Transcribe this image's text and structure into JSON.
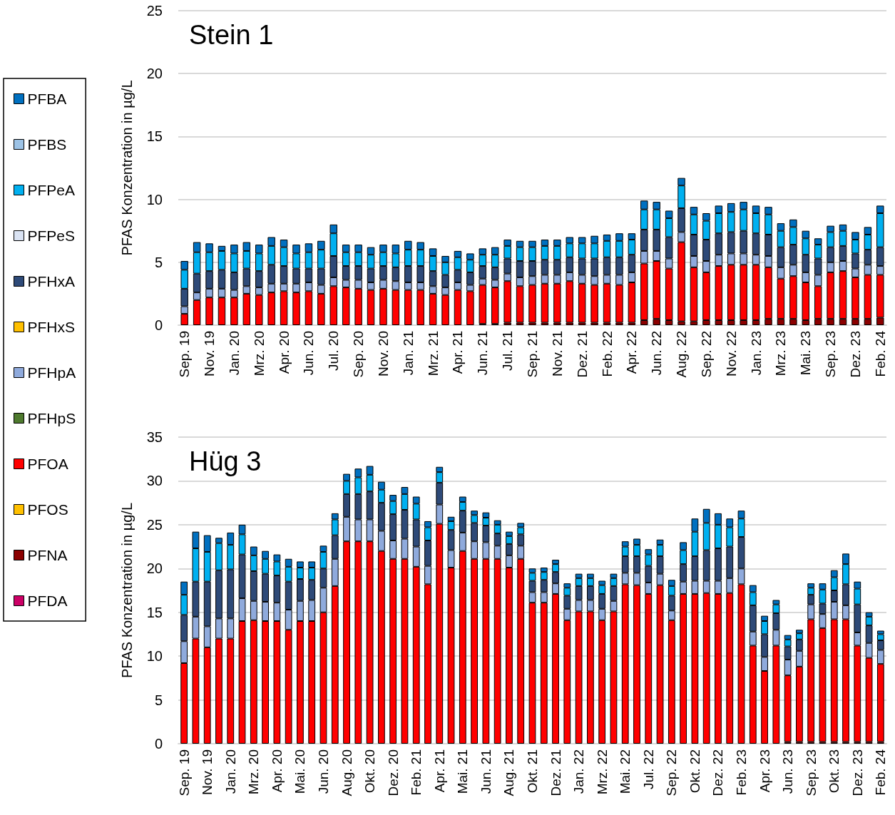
{
  "chart_data": [
    {
      "type": "bar",
      "title": "Stein 1",
      "ylabel": "PFAS Konzentration in µg/L",
      "stacked": true,
      "grid": "y",
      "legend": "left",
      "ylim": [
        0,
        25
      ],
      "yticks": [
        0,
        5,
        10,
        15,
        20,
        25
      ],
      "categories": [
        "Sep. 19",
        null,
        "Nov. 19",
        null,
        "Jan. 20",
        null,
        "Mrz. 20",
        null,
        "Apr. 20",
        null,
        "Jun. 20",
        null,
        "Jul. 20",
        null,
        "Sep. 20",
        null,
        "Nov. 20",
        null,
        "Jan. 21",
        null,
        "Mrz. 21",
        null,
        "Apr. 21",
        null,
        "Jun. 21",
        null,
        "Jul. 21",
        null,
        "Sep. 21",
        null,
        "Nov. 21",
        null,
        "Dez. 21",
        null,
        "Feb. 22",
        null,
        "Apr. 22",
        null,
        "Jun. 22",
        null,
        "Aug. 22",
        null,
        "Sep. 22",
        null,
        "Nov. 22",
        null,
        "Jan. 23",
        null,
        "Mrz. 23",
        null,
        "Mai. 23",
        null,
        "Sep. 23",
        null,
        "Dez. 23",
        null,
        "Feb. 24"
      ],
      "series": [
        {
          "name": "PFDA",
          "color": "#cc0066",
          "values": [
            0,
            0,
            0,
            0,
            0,
            0,
            0,
            0,
            0,
            0,
            0,
            0,
            0,
            0,
            0,
            0,
            0,
            0,
            0,
            0,
            0,
            0,
            0,
            0,
            0,
            0,
            0,
            0,
            0,
            0,
            0,
            0,
            0,
            0,
            0,
            0,
            0,
            0,
            0,
            0,
            0,
            0,
            0,
            0,
            0,
            0,
            0,
            0,
            0,
            0,
            0,
            0,
            0,
            0,
            0,
            0,
            0
          ]
        },
        {
          "name": "PFNA",
          "color": "#8b0000",
          "values": [
            0,
            0,
            0,
            0,
            0,
            0,
            0,
            0,
            0,
            0,
            0,
            0,
            0,
            0,
            0,
            0,
            0,
            0,
            0,
            0,
            0,
            0,
            0,
            0,
            0.1,
            0.1,
            0.2,
            0.2,
            0.2,
            0.2,
            0.2,
            0.2,
            0.2,
            0.2,
            0.2,
            0.2,
            0.2,
            0.4,
            0.5,
            0.4,
            0.3,
            0.3,
            0.4,
            0.4,
            0.4,
            0.4,
            0.4,
            0.5,
            0.5,
            0.5,
            0.4,
            0.5,
            0.5,
            0.5,
            0.5,
            0.5,
            0.6
          ]
        },
        {
          "name": "PFOS",
          "color": "#ffc000",
          "values": [
            0,
            0,
            0,
            0,
            0,
            0,
            0,
            0,
            0,
            0,
            0,
            0,
            0,
            0,
            0,
            0,
            0,
            0,
            0,
            0,
            0,
            0,
            0,
            0,
            0,
            0,
            0,
            0,
            0,
            0,
            0,
            0,
            0,
            0,
            0,
            0,
            0,
            0,
            0,
            0,
            0,
            0,
            0,
            0,
            0,
            0,
            0,
            0,
            0,
            0,
            0,
            0,
            0,
            0,
            0,
            0,
            0
          ]
        },
        {
          "name": "PFOA",
          "color": "#ff0000",
          "values": [
            0.9,
            2.0,
            2.2,
            2.2,
            2.2,
            2.5,
            2.4,
            2.6,
            2.7,
            2.6,
            2.7,
            2.5,
            3.1,
            3.0,
            2.9,
            2.8,
            2.9,
            2.8,
            2.8,
            2.8,
            2.5,
            2.4,
            2.8,
            2.7,
            3.1,
            2.9,
            3.3,
            2.9,
            3.0,
            3.1,
            3.1,
            3.3,
            3.1,
            3.0,
            3.1,
            3.0,
            3.2,
            4.5,
            4.6,
            4.1,
            6.3,
            4.3,
            3.8,
            4.3,
            4.4,
            4.4,
            4.4,
            4.1,
            3.2,
            3.4,
            3.0,
            2.6,
            3.7,
            3.8,
            3.3,
            3.5,
            3.4
          ]
        },
        {
          "name": "PFHpS",
          "color": "#4e7a2e",
          "values": [
            0,
            0,
            0,
            0,
            0,
            0,
            0,
            0,
            0,
            0,
            0,
            0,
            0,
            0,
            0,
            0,
            0,
            0,
            0,
            0,
            0,
            0,
            0,
            0,
            0,
            0,
            0,
            0,
            0,
            0,
            0,
            0,
            0,
            0,
            0,
            0,
            0,
            0,
            0,
            0,
            0,
            0,
            0,
            0,
            0,
            0,
            0,
            0,
            0,
            0,
            0,
            0,
            0,
            0,
            0,
            0,
            0
          ]
        },
        {
          "name": "PFHpA",
          "color": "#8faadc",
          "values": [
            0.6,
            0.6,
            0.7,
            0.7,
            0.6,
            0.6,
            0.6,
            0.7,
            0.6,
            0.7,
            0.7,
            0.7,
            0.7,
            0.6,
            0.7,
            0.6,
            0.7,
            0.7,
            0.6,
            0.6,
            0.6,
            0.6,
            0.6,
            0.5,
            0.5,
            0.6,
            0.6,
            0.7,
            0.7,
            0.7,
            0.7,
            0.7,
            0.7,
            0.7,
            0.7,
            0.8,
            0.8,
            1.0,
            0.8,
            0.8,
            0.8,
            0.9,
            0.9,
            0.9,
            0.9,
            0.9,
            0.8,
            0.9,
            0.9,
            0.9,
            0.8,
            0.9,
            0.8,
            0.8,
            0.7,
            0.8,
            0.7
          ]
        },
        {
          "name": "PFHxS",
          "color": "#ffc000",
          "values": [
            0,
            0,
            0,
            0,
            0,
            0,
            0,
            0,
            0,
            0,
            0,
            0,
            0,
            0,
            0,
            0,
            0,
            0,
            0,
            0,
            0,
            0,
            0,
            0,
            0,
            0,
            0,
            0,
            0,
            0,
            0,
            0,
            0,
            0,
            0,
            0,
            0,
            0,
            0,
            0,
            0,
            0,
            0,
            0,
            0,
            0,
            0,
            0,
            0,
            0,
            0,
            0,
            0,
            0,
            0,
            0,
            0
          ]
        },
        {
          "name": "PFHxA",
          "color": "#2e4a78",
          "values": [
            1.4,
            1.5,
            1.4,
            1.5,
            1.4,
            1.4,
            1.3,
            1.5,
            1.4,
            1.2,
            1.1,
            1.3,
            1.7,
            1.1,
            1.1,
            1.1,
            1.1,
            1.1,
            1.3,
            1.3,
            1.2,
            1.0,
            1.0,
            1.0,
            1.0,
            1.0,
            1.2,
            1.3,
            1.2,
            1.2,
            1.2,
            1.2,
            1.3,
            1.4,
            1.4,
            1.4,
            1.4,
            1.7,
            1.7,
            1.7,
            1.9,
            1.7,
            1.7,
            1.7,
            1.7,
            1.8,
            1.7,
            1.7,
            1.6,
            1.6,
            1.4,
            1.3,
            1.2,
            1.2,
            1.2,
            1.2,
            1.5
          ]
        },
        {
          "name": "PFPeS",
          "color": "#dae3f3",
          "values": [
            0,
            0,
            0,
            0,
            0,
            0,
            0,
            0,
            0,
            0,
            0,
            0,
            0,
            0,
            0,
            0,
            0,
            0,
            0,
            0,
            0,
            0,
            0,
            0,
            0,
            0,
            0,
            0,
            0,
            0,
            0,
            0,
            0,
            0,
            0,
            0,
            0,
            0,
            0,
            0,
            0,
            0,
            0,
            0,
            0,
            0,
            0,
            0,
            0,
            0,
            0,
            0,
            0,
            0,
            0,
            0,
            0
          ]
        },
        {
          "name": "PFPeA",
          "color": "#00b0f0",
          "values": [
            1.5,
            1.7,
            1.5,
            1.5,
            1.5,
            1.4,
            1.4,
            1.5,
            1.5,
            1.2,
            1.3,
            1.5,
            1.8,
            1.1,
            1.1,
            1.1,
            1.1,
            1.1,
            1.3,
            1.3,
            1.2,
            1.0,
            1.0,
            1.0,
            0.9,
            1.0,
            1.0,
            1.1,
            1.1,
            1.1,
            1.1,
            1.1,
            1.2,
            1.2,
            1.3,
            1.3,
            1.2,
            1.6,
            1.6,
            1.5,
            1.8,
            1.6,
            1.5,
            1.6,
            1.6,
            1.7,
            1.6,
            1.6,
            1.3,
            1.4,
            1.3,
            1.1,
            1.2,
            1.2,
            1.1,
            1.2,
            2.7
          ]
        },
        {
          "name": "PFBS",
          "color": "#9dc3e6",
          "values": [
            0,
            0,
            0,
            0,
            0,
            0,
            0,
            0,
            0,
            0,
            0,
            0,
            0,
            0,
            0,
            0,
            0,
            0,
            0,
            0,
            0,
            0,
            0,
            0,
            0,
            0,
            0,
            0,
            0,
            0,
            0,
            0,
            0,
            0,
            0,
            0,
            0,
            0,
            0,
            0,
            0,
            0,
            0,
            0,
            0,
            0,
            0,
            0,
            0,
            0,
            0,
            0,
            0,
            0,
            0,
            0,
            0
          ]
        },
        {
          "name": "PFBA",
          "color": "#0070c0",
          "values": [
            0.7,
            0.8,
            0.7,
            0.4,
            0.7,
            0.7,
            0.7,
            0.7,
            0.6,
            0.7,
            0.7,
            0.7,
            0.7,
            0.6,
            0.6,
            0.6,
            0.6,
            0.7,
            0.7,
            0.6,
            0.6,
            0.5,
            0.5,
            0.5,
            0.5,
            0.6,
            0.5,
            0.5,
            0.5,
            0.5,
            0.5,
            0.5,
            0.5,
            0.6,
            0.5,
            0.6,
            0.5,
            0.7,
            0.6,
            0.6,
            0.6,
            0.6,
            0.6,
            0.6,
            0.7,
            0.6,
            0.6,
            0.6,
            0.6,
            0.6,
            0.6,
            0.5,
            0.5,
            0.5,
            0.6,
            0.6,
            0.6
          ]
        }
      ]
    },
    {
      "type": "bar",
      "title": "Hüg 3",
      "ylabel": "PFAS Konzentration in µg/L",
      "stacked": true,
      "grid": "y",
      "ylim": [
        0,
        35
      ],
      "yticks": [
        0,
        5,
        10,
        15,
        20,
        25,
        30,
        35
      ],
      "categories": [
        "Sep. 19",
        null,
        "Nov. 19",
        null,
        "Jan. 20",
        null,
        "Mrz. 20",
        null,
        "Apr. 20",
        null,
        "Mai. 20",
        null,
        "Jun. 20",
        null,
        "Aug. 20",
        null,
        "Okt. 20",
        null,
        "Dez. 20",
        null,
        "Feb. 21",
        null,
        "Apr. 21",
        null,
        "Mai. 21",
        null,
        "Jun. 21",
        null,
        "Aug. 21",
        null,
        "Okt. 21",
        null,
        "Dez. 21",
        null,
        "Jan. 22",
        null,
        "Mrz. 22",
        null,
        "Mai. 22",
        null,
        "Jul. 22",
        null,
        "Sep. 22",
        null,
        "Okt. 22",
        null,
        "Dez. 22",
        null,
        "Feb. 23",
        null,
        "Apr. 23",
        null,
        "Jun. 23",
        null,
        "Sep. 23",
        null,
        "Okt. 23",
        null,
        "Dez. 23",
        null,
        "Feb. 24"
      ],
      "series": [
        {
          "color": "#8b0000",
          "values": [
            0,
            0,
            0,
            0,
            0,
            0,
            0,
            0,
            0,
            0,
            0,
            0,
            0,
            0,
            0,
            0,
            0,
            0,
            0,
            0,
            0,
            0,
            0,
            0,
            0,
            0,
            0,
            0,
            0,
            0,
            0,
            0,
            0,
            0,
            0,
            0,
            0,
            0,
            0,
            0,
            0,
            0,
            0,
            0,
            0,
            0,
            0,
            0,
            0,
            0,
            0,
            0,
            0.2,
            0.2,
            0.2,
            0.2,
            0.2,
            0.2,
            0.2,
            0.2,
            0.2
          ]
        },
        {
          "color": "#ff0000",
          "values": [
            9.2,
            12.0,
            11.0,
            12.0,
            12.0,
            14.0,
            14.1,
            14.0,
            14.0,
            13.0,
            14.0,
            14.0,
            15.0,
            18.0,
            23.1,
            23.1,
            23.1,
            22.0,
            21.1,
            21.1,
            20.2,
            18.2,
            25.1,
            20.1,
            22.0,
            21.1,
            21.1,
            21.1,
            20.1,
            21.1,
            16.1,
            16.1,
            17.1,
            14.1,
            15.1,
            15.1,
            14.1,
            15.1,
            18.2,
            18.1,
            17.1,
            18.1,
            14.1,
            17.1,
            17.1,
            17.2,
            17.1,
            17.2,
            18.2,
            11.2,
            8.3,
            11.2,
            7.6,
            8.6,
            14.0,
            13.0,
            14.0,
            14.0,
            11.0,
            9.6,
            8.9
          ]
        },
        {
          "color": "#8faadc",
          "values": [
            2.5,
            2.5,
            2.4,
            2.3,
            2.3,
            2.6,
            2.2,
            2.2,
            2.1,
            2.3,
            2.3,
            2.4,
            2.8,
            3.1,
            2.8,
            2.5,
            2.5,
            2.3,
            2.1,
            2.3,
            2.3,
            2.1,
            2.2,
            2.0,
            2.1,
            2.0,
            1.9,
            1.5,
            1.4,
            1.5,
            1.2,
            1.2,
            1.2,
            1.3,
            1.3,
            1.3,
            1.3,
            1.2,
            1.3,
            1.4,
            1.3,
            1.3,
            1.1,
            1.4,
            1.5,
            1.4,
            1.5,
            1.7,
            1.8,
            1.6,
            1.6,
            1.8,
            1.8,
            1.8,
            1.7,
            1.6,
            2.0,
            1.6,
            1.5,
            1.7,
            1.6
          ]
        },
        {
          "color": "#2e4a78",
          "values": [
            3.0,
            4.0,
            5.1,
            5.5,
            5.6,
            5.0,
            3.4,
            3.2,
            3.1,
            3.2,
            2.5,
            2.3,
            2.2,
            2.7,
            2.6,
            2.9,
            3.2,
            3.2,
            3.0,
            3.3,
            3.1,
            2.9,
            2.5,
            2.3,
            2.5,
            2.1,
            1.9,
            1.4,
            1.3,
            1.3,
            1.3,
            1.4,
            1.3,
            1.5,
            1.6,
            1.6,
            1.7,
            1.7,
            1.9,
            1.9,
            1.9,
            2.0,
            1.7,
            2.0,
            2.8,
            3.5,
            3.7,
            3.6,
            3.6,
            3.0,
            2.6,
            1.9,
            1.5,
            1.3,
            1.1,
            1.2,
            1.3,
            2.4,
            3.2,
            2.0,
            1.1
          ]
        },
        {
          "color": "#00b0f0",
          "values": [
            2.3,
            3.8,
            3.4,
            3.1,
            2.8,
            2.3,
            1.8,
            1.7,
            1.6,
            1.7,
            1.3,
            1.4,
            1.9,
            1.8,
            1.5,
            1.9,
            1.9,
            1.5,
            1.5,
            1.8,
            1.8,
            1.5,
            1.2,
            1.0,
            1.0,
            0.9,
            0.9,
            1.0,
            0.9,
            0.8,
            0.9,
            0.9,
            0.9,
            0.9,
            0.9,
            0.9,
            1.0,
            0.9,
            1.1,
            1.3,
            1.3,
            1.3,
            1.1,
            1.6,
            2.8,
            3.1,
            2.7,
            2.2,
            2.1,
            1.5,
            1.5,
            1.0,
            0.8,
            0.7,
            0.8,
            1.6,
            1.5,
            2.3,
            1.8,
            1.0,
            0.7
          ]
        },
        {
          "color": "#0070c0",
          "values": [
            1.5,
            1.9,
            1.9,
            0.6,
            1.4,
            1.1,
            1.0,
            0.9,
            0.8,
            0.9,
            0.7,
            0.7,
            0.7,
            0.7,
            0.8,
            1.0,
            1.0,
            0.9,
            0.7,
            0.8,
            0.8,
            0.7,
            0.6,
            0.5,
            0.6,
            0.5,
            0.6,
            0.5,
            0.5,
            0.5,
            0.5,
            0.5,
            0.5,
            0.5,
            0.5,
            0.5,
            0.5,
            0.5,
            0.6,
            0.7,
            0.6,
            0.6,
            0.7,
            0.9,
            1.5,
            1.6,
            1.3,
            1.0,
            0.9,
            0.8,
            0.6,
            0.5,
            0.5,
            0.4,
            0.5,
            0.7,
            0.8,
            1.2,
            0.8,
            0.5,
            0.4
          ]
        }
      ]
    }
  ]
}
